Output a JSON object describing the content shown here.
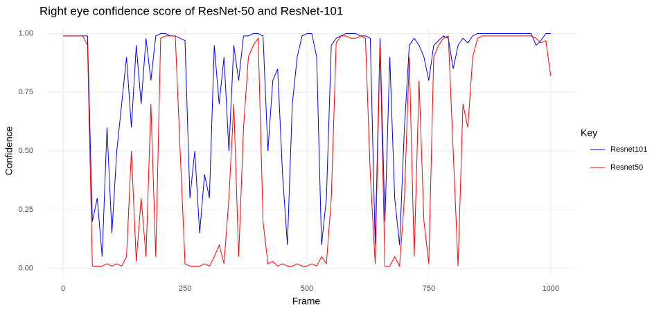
{
  "chart_data": {
    "type": "line",
    "title": "Right eye confidence score of ResNet-50 and ResNet-101",
    "x_label": "Frame",
    "y_label": "Confidence",
    "legend_title": "Key",
    "x": [
      0,
      10,
      20,
      30,
      40,
      50,
      60,
      70,
      80,
      90,
      100,
      110,
      120,
      130,
      140,
      150,
      160,
      170,
      180,
      190,
      200,
      210,
      220,
      230,
      240,
      250,
      260,
      270,
      280,
      290,
      300,
      310,
      320,
      330,
      340,
      350,
      360,
      370,
      380,
      390,
      400,
      410,
      420,
      430,
      440,
      450,
      460,
      470,
      480,
      490,
      500,
      510,
      520,
      530,
      540,
      550,
      560,
      570,
      580,
      590,
      600,
      610,
      620,
      630,
      640,
      650,
      660,
      670,
      680,
      690,
      700,
      710,
      720,
      730,
      740,
      750,
      760,
      770,
      780,
      790,
      800,
      810,
      820,
      830,
      840,
      850,
      860,
      870,
      880,
      890,
      900,
      910,
      920,
      930,
      940,
      950,
      960,
      970,
      980,
      990,
      1000
    ],
    "series": [
      {
        "name": "Resnet101",
        "color": "#0000ff",
        "values": [
          0.99,
          0.99,
          0.99,
          0.99,
          0.99,
          0.99,
          0.2,
          0.3,
          0.05,
          0.6,
          0.15,
          0.5,
          0.7,
          0.9,
          0.6,
          0.95,
          0.7,
          0.98,
          0.8,
          0.99,
          1.0,
          1.0,
          0.99,
          0.99,
          0.98,
          0.97,
          0.3,
          0.5,
          0.15,
          0.4,
          0.3,
          0.95,
          0.7,
          0.9,
          0.5,
          0.95,
          0.8,
          0.99,
          0.99,
          1.0,
          1.0,
          0.99,
          0.5,
          0.8,
          0.85,
          0.4,
          0.1,
          0.7,
          0.9,
          0.99,
          1.0,
          1.0,
          0.9,
          0.1,
          0.3,
          0.95,
          0.98,
          0.99,
          1.0,
          1.0,
          1.0,
          0.99,
          0.99,
          0.98,
          0.1,
          0.98,
          0.2,
          0.9,
          0.3,
          0.1,
          0.6,
          0.95,
          0.98,
          0.95,
          0.9,
          0.8,
          0.95,
          0.97,
          0.99,
          0.98,
          0.85,
          0.95,
          0.98,
          0.96,
          0.99,
          1.0,
          1.0,
          1.0,
          1.0,
          1.0,
          1.0,
          1.0,
          1.0,
          1.0,
          1.0,
          1.0,
          1.0,
          0.95,
          0.97,
          1.0,
          1.0
        ]
      },
      {
        "name": "Resnet50",
        "color": "#ff0000",
        "values": [
          0.99,
          0.99,
          0.99,
          0.99,
          0.99,
          0.95,
          0.01,
          0.01,
          0.01,
          0.02,
          0.01,
          0.02,
          0.01,
          0.05,
          0.5,
          0.03,
          0.3,
          0.05,
          0.7,
          0.05,
          0.98,
          0.99,
          0.99,
          0.99,
          0.5,
          0.02,
          0.01,
          0.01,
          0.01,
          0.02,
          0.01,
          0.05,
          0.1,
          0.02,
          0.3,
          0.7,
          0.05,
          0.6,
          0.9,
          0.95,
          0.98,
          0.2,
          0.02,
          0.03,
          0.01,
          0.02,
          0.01,
          0.01,
          0.02,
          0.01,
          0.01,
          0.02,
          0.01,
          0.05,
          0.02,
          0.3,
          0.96,
          0.99,
          0.99,
          0.98,
          0.98,
          0.99,
          0.98,
          0.4,
          0.02,
          0.95,
          0.01,
          0.01,
          0.05,
          0.01,
          0.3,
          0.9,
          0.05,
          0.8,
          0.2,
          0.02,
          0.9,
          0.95,
          0.98,
          0.99,
          0.5,
          0.01,
          0.7,
          0.6,
          0.9,
          0.98,
          0.99,
          0.99,
          0.99,
          0.99,
          0.99,
          0.99,
          0.99,
          0.99,
          0.99,
          0.99,
          0.99,
          0.98,
          0.96,
          0.97,
          0.82
        ]
      }
    ],
    "xlim": [
      -30,
      1050
    ],
    "ylim": [
      -0.03,
      1.025
    ],
    "xticks": [
      0,
      250,
      500,
      750,
      1000
    ],
    "yticks": [
      {
        "value": 0,
        "label": "0.00"
      },
      {
        "value": 0.25,
        "label": "0.25"
      },
      {
        "value": 0.5,
        "label": "0.50"
      },
      {
        "value": 0.75,
        "label": "0.75"
      },
      {
        "value": 1,
        "label": "1.00"
      }
    ],
    "grid": true,
    "legend_position": "right"
  }
}
